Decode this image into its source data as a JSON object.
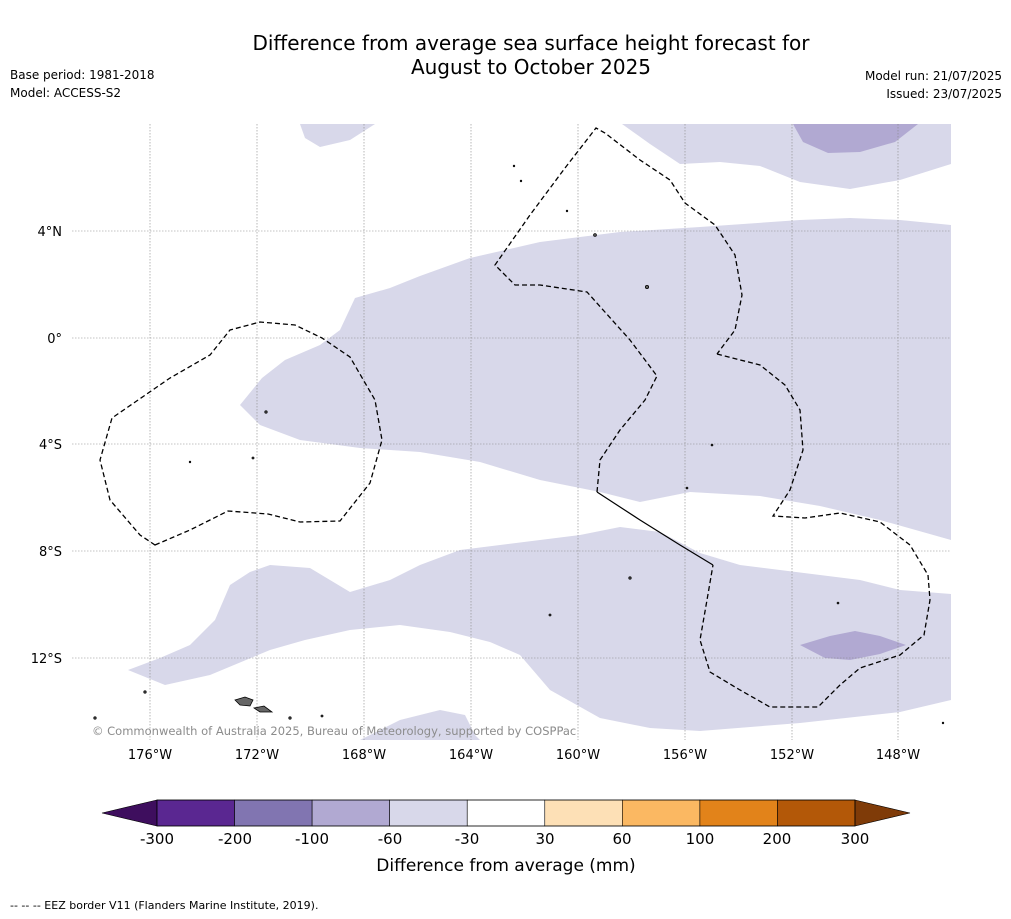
{
  "header": {
    "title_line1": "Difference from average sea surface height forecast for",
    "title_line2": "August to October 2025",
    "base_period": "Base period: 1981-2018",
    "model": "Model: ACCESS-S2",
    "model_run": "Model run: 21/07/2025",
    "issued": "Issued: 23/07/2025"
  },
  "map": {
    "lat_labels": [
      "4°N",
      "0°",
      "4°S",
      "8°S",
      "12°S"
    ],
    "lon_labels": [
      "176°W",
      "172°W",
      "168°W",
      "164°W",
      "160°W",
      "156°W",
      "152°W",
      "148°W"
    ],
    "copyright": "© Commonwealth of Australia 2025, Bureau of Meteorology, supported by COSPPac",
    "colors": {
      "anomaly_light": "#d8d8ea",
      "anomaly_mid": "#b1a9d2",
      "eez_border": "#000000"
    }
  },
  "colorbar": {
    "label": "Difference from average (mm)",
    "ticks": [
      "-300",
      "-200",
      "-100",
      "-60",
      "-30",
      "30",
      "60",
      "100",
      "200",
      "300"
    ],
    "colors": [
      "#5a2791",
      "#8175b1",
      "#b1a9d2",
      "#d8d8ea",
      "#ffffff",
      "#fde0b6",
      "#fbb862",
      "#e2831a",
      "#b35808"
    ],
    "under_color": "#3e0e5e",
    "over_color": "#7f3b08"
  },
  "footnote": "--  --  -- EEZ border V11 (Flanders Marine Institute, 2019)."
}
